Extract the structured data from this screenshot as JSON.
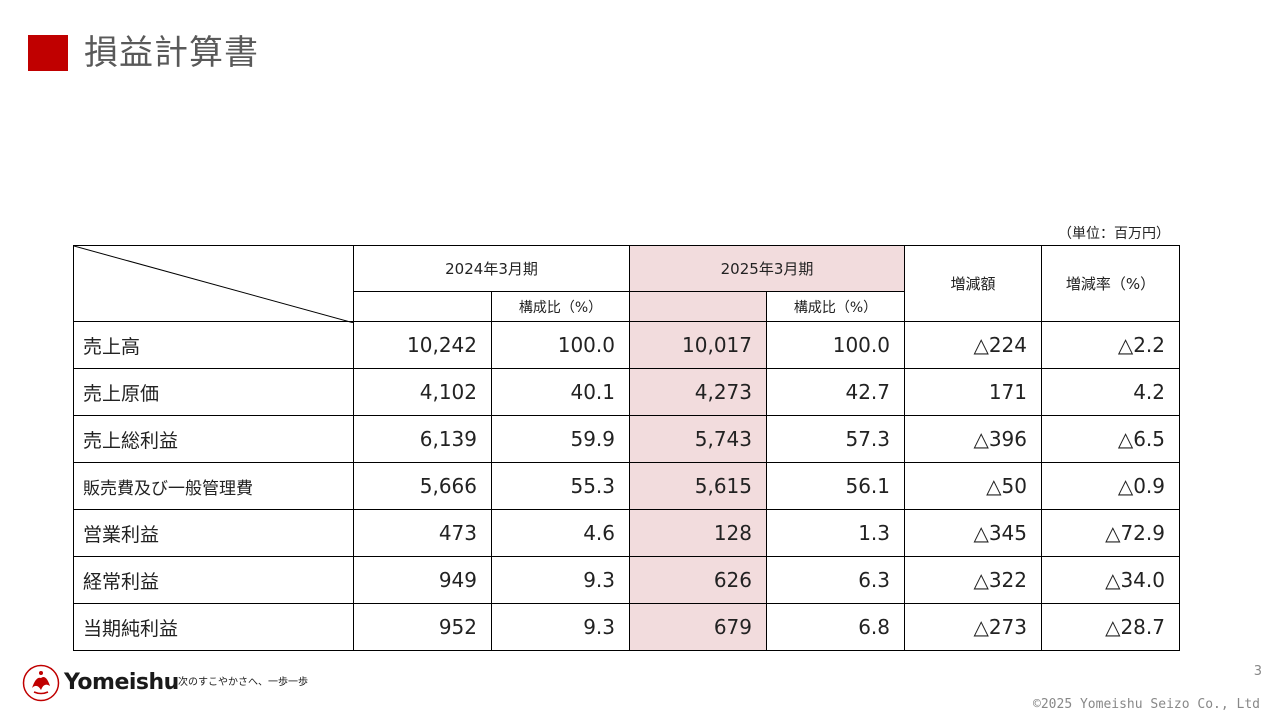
{
  "title": "損益計算書",
  "accent_color": "#c00000",
  "highlight_color": "#f2dcdd",
  "unit": "（単位：百万円）",
  "table": {
    "col_2024": "2024年3月期",
    "col_2025": "2025年3月期",
    "col_diff": "増減額",
    "col_rate": "増減率（%）",
    "ratio_label": "構成比（%）",
    "rows": [
      {
        "label": "売上高",
        "v2024": "10,242",
        "r2024": "100.0",
        "v2025": "10,017",
        "r2025": "100.0",
        "diff": "△224",
        "rate": "△2.2"
      },
      {
        "label": "売上原価",
        "v2024": "4,102",
        "r2024": "40.1",
        "v2025": "4,273",
        "r2025": "42.7",
        "diff": "171",
        "rate": "4.2"
      },
      {
        "label": "売上総利益",
        "v2024": "6,139",
        "r2024": "59.9",
        "v2025": "5,743",
        "r2025": "57.3",
        "diff": "△396",
        "rate": "△6.5"
      },
      {
        "label": "販売費及び一般管理費",
        "v2024": "5,666",
        "r2024": "55.3",
        "v2025": "5,615",
        "r2025": "56.1",
        "diff": "△50",
        "rate": "△0.9"
      },
      {
        "label": "営業利益",
        "v2024": "473",
        "r2024": "4.6",
        "v2025": "128",
        "r2025": "1.3",
        "diff": "△345",
        "rate": "△72.9"
      },
      {
        "label": "経常利益",
        "v2024": "949",
        "r2024": "9.3",
        "v2025": "626",
        "r2025": "6.3",
        "diff": "△322",
        "rate": "△34.0"
      },
      {
        "label": "当期純利益",
        "v2024": "952",
        "r2024": "9.3",
        "v2025": "679",
        "r2025": "6.8",
        "diff": "△273",
        "rate": "△28.7"
      }
    ]
  },
  "footer": {
    "logo_icon": "yomeishu-crest-icon",
    "brand": "Yomeishu",
    "tagline": "次のすこやかさへ、一歩一歩",
    "page_number": "3",
    "copyright": "©2025 Yomeishu Seizo Co., Ltd"
  }
}
